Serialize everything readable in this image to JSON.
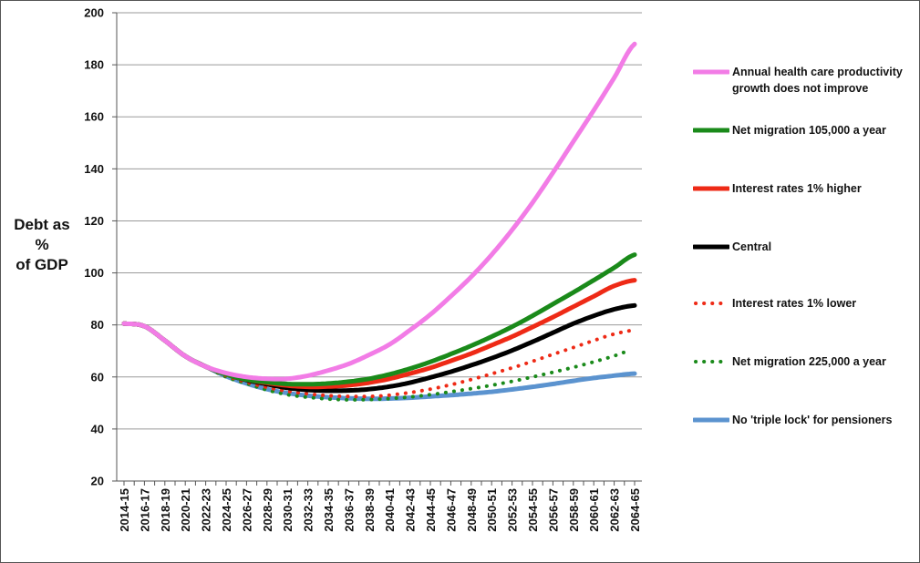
{
  "chart_data": {
    "type": "line",
    "title": "",
    "ylabel": [
      "Debt as",
      "%",
      "of GDP"
    ],
    "xlabel": "",
    "ylim": [
      20,
      200
    ],
    "yticks": [
      20,
      40,
      60,
      80,
      100,
      120,
      140,
      160,
      180,
      200
    ],
    "grid": true,
    "legend_position": "right",
    "x": [
      "2014-15",
      "2015-16",
      "2016-17",
      "2017-18",
      "2018-19",
      "2019-20",
      "2020-21",
      "2021-22",
      "2022-23",
      "2023-24",
      "2024-25",
      "2025-26",
      "2026-27",
      "2027-28",
      "2028-29",
      "2029-30",
      "2030-31",
      "2031-32",
      "2032-33",
      "2033-34",
      "2034-35",
      "2035-36",
      "2036-37",
      "2037-38",
      "2038-39",
      "2039-40",
      "2040-41",
      "2041-42",
      "2042-43",
      "2043-44",
      "2044-45",
      "2045-46",
      "2046-47",
      "2047-48",
      "2048-49",
      "2049-50",
      "2050-51",
      "2051-52",
      "2052-53",
      "2053-54",
      "2054-55",
      "2055-56",
      "2056-57",
      "2057-58",
      "2058-59",
      "2059-60",
      "2060-61",
      "2061-62",
      "2062-63",
      "2063-64",
      "2064-65"
    ],
    "xticks": [
      "2014-15",
      "2016-17",
      "2018-19",
      "2020-21",
      "2022-23",
      "2024-25",
      "2026-27",
      "2028-29",
      "2030-31",
      "2032-33",
      "2034-35",
      "2036-37",
      "2038-39",
      "2040-41",
      "2042-43",
      "2044-45",
      "2046-47",
      "2048-49",
      "2050-51",
      "2052-53",
      "2054-55",
      "2056-57",
      "2058-59",
      "2060-61",
      "2062-63",
      "2064-65"
    ],
    "series": [
      {
        "name": "Annual health care productivity growth does not improve",
        "color": "#f27ce6",
        "dash": false,
        "anchors": [
          [
            0,
            80.5
          ],
          [
            2,
            79.5
          ],
          [
            4,
            74
          ],
          [
            6,
            68
          ],
          [
            8,
            64
          ],
          [
            10,
            61.5
          ],
          [
            12,
            60
          ],
          [
            14,
            59.3
          ],
          [
            16,
            59.3
          ],
          [
            18,
            60.5
          ],
          [
            20,
            62.5
          ],
          [
            22,
            65
          ],
          [
            24,
            68.5
          ],
          [
            26,
            72.5
          ],
          [
            28,
            78
          ],
          [
            30,
            84
          ],
          [
            32,
            91
          ],
          [
            34,
            98.5
          ],
          [
            36,
            107
          ],
          [
            38,
            116.5
          ],
          [
            40,
            127
          ],
          [
            42,
            138.5
          ],
          [
            44,
            150.5
          ],
          [
            46,
            162.5
          ],
          [
            48,
            175
          ],
          [
            50,
            188
          ]
        ]
      },
      {
        "name": "Net migration 105,000 a year",
        "color": "#1a8a1a",
        "dash": false,
        "anchors": [
          [
            0,
            80.5
          ],
          [
            2,
            79.5
          ],
          [
            4,
            74
          ],
          [
            6,
            68
          ],
          [
            8,
            64
          ],
          [
            10,
            61
          ],
          [
            12,
            59
          ],
          [
            14,
            58
          ],
          [
            16,
            57.3
          ],
          [
            18,
            57.2
          ],
          [
            20,
            57.5
          ],
          [
            22,
            58.2
          ],
          [
            24,
            59.3
          ],
          [
            26,
            61
          ],
          [
            28,
            63.2
          ],
          [
            30,
            65.8
          ],
          [
            32,
            68.8
          ],
          [
            34,
            72
          ],
          [
            36,
            75.5
          ],
          [
            38,
            79.3
          ],
          [
            40,
            83.5
          ],
          [
            42,
            88
          ],
          [
            44,
            92.5
          ],
          [
            46,
            97.2
          ],
          [
            48,
            102
          ],
          [
            50,
            107
          ]
        ]
      },
      {
        "name": "Interest rates 1% higher",
        "color": "#ee2a16",
        "dash": false,
        "anchors": [
          [
            0,
            80.5
          ],
          [
            2,
            79.5
          ],
          [
            4,
            74
          ],
          [
            6,
            68
          ],
          [
            8,
            64
          ],
          [
            10,
            61
          ],
          [
            12,
            59
          ],
          [
            14,
            57.7
          ],
          [
            16,
            56.7
          ],
          [
            18,
            56.2
          ],
          [
            20,
            56.3
          ],
          [
            22,
            56.8
          ],
          [
            24,
            57.8
          ],
          [
            26,
            59.3
          ],
          [
            28,
            61.3
          ],
          [
            30,
            63.5
          ],
          [
            32,
            66.2
          ],
          [
            34,
            69
          ],
          [
            36,
            72.2
          ],
          [
            38,
            75.5
          ],
          [
            40,
            79.2
          ],
          [
            42,
            83
          ],
          [
            44,
            87
          ],
          [
            46,
            91
          ],
          [
            48,
            95
          ],
          [
            50,
            97.2
          ]
        ]
      },
      {
        "name": "Central",
        "color": "#000000",
        "dash": false,
        "anchors": [
          [
            0,
            80.5
          ],
          [
            2,
            79.5
          ],
          [
            4,
            74
          ],
          [
            6,
            68
          ],
          [
            8,
            64
          ],
          [
            10,
            61
          ],
          [
            12,
            58.8
          ],
          [
            14,
            57.2
          ],
          [
            16,
            55.8
          ],
          [
            18,
            55
          ],
          [
            20,
            54.7
          ],
          [
            22,
            54.8
          ],
          [
            24,
            55.3
          ],
          [
            26,
            56.3
          ],
          [
            28,
            57.8
          ],
          [
            30,
            59.8
          ],
          [
            32,
            62
          ],
          [
            34,
            64.5
          ],
          [
            36,
            67.2
          ],
          [
            38,
            70.2
          ],
          [
            40,
            73.5
          ],
          [
            42,
            77
          ],
          [
            44,
            80.5
          ],
          [
            46,
            83.5
          ],
          [
            48,
            86
          ],
          [
            50,
            87.5
          ]
        ]
      },
      {
        "name": "Interest rates 1% lower",
        "color": "#ee2a16",
        "dash": true,
        "anchors": [
          [
            0,
            80.5
          ],
          [
            2,
            79.5
          ],
          [
            4,
            74
          ],
          [
            6,
            68
          ],
          [
            8,
            64
          ],
          [
            10,
            60.5
          ],
          [
            12,
            58
          ],
          [
            14,
            56
          ],
          [
            16,
            54.5
          ],
          [
            18,
            53.5
          ],
          [
            20,
            52.8
          ],
          [
            22,
            52.5
          ],
          [
            24,
            52.5
          ],
          [
            26,
            53
          ],
          [
            28,
            54
          ],
          [
            30,
            55.3
          ],
          [
            32,
            57
          ],
          [
            34,
            59
          ],
          [
            36,
            61.2
          ],
          [
            38,
            63.5
          ],
          [
            40,
            66
          ],
          [
            42,
            68.7
          ],
          [
            44,
            71.3
          ],
          [
            46,
            74
          ],
          [
            48,
            76.5
          ],
          [
            50,
            78
          ]
        ]
      },
      {
        "name": "Net migration 225,000 a year",
        "color": "#1a8a1a",
        "dash": true,
        "anchors": [
          [
            0,
            80.5
          ],
          [
            2,
            79.5
          ],
          [
            4,
            74
          ],
          [
            6,
            68
          ],
          [
            8,
            64
          ],
          [
            10,
            60
          ],
          [
            12,
            57.5
          ],
          [
            14,
            55
          ],
          [
            16,
            53.2
          ],
          [
            18,
            52.2
          ],
          [
            20,
            51.5
          ],
          [
            22,
            51.2
          ],
          [
            24,
            51.3
          ],
          [
            26,
            51.7
          ],
          [
            28,
            52.3
          ],
          [
            30,
            53.2
          ],
          [
            32,
            54.3
          ],
          [
            34,
            55.5
          ],
          [
            36,
            56.8
          ],
          [
            38,
            58.3
          ],
          [
            40,
            60
          ],
          [
            42,
            61.8
          ],
          [
            44,
            63.7
          ],
          [
            46,
            65.8
          ],
          [
            48,
            68
          ],
          [
            49,
            69.5
          ]
        ]
      },
      {
        "name": "No  'triple lock' for pensioners",
        "color": "#5b93cf",
        "dash": false,
        "anchors": [
          [
            0,
            80.5
          ],
          [
            2,
            79.5
          ],
          [
            4,
            74
          ],
          [
            6,
            68
          ],
          [
            8,
            64
          ],
          [
            10,
            60.3
          ],
          [
            12,
            57.5
          ],
          [
            14,
            55.3
          ],
          [
            16,
            53.8
          ],
          [
            18,
            52.8
          ],
          [
            20,
            52.2
          ],
          [
            22,
            51.8
          ],
          [
            24,
            51.6
          ],
          [
            26,
            51.7
          ],
          [
            28,
            52
          ],
          [
            30,
            52.5
          ],
          [
            32,
            53
          ],
          [
            34,
            53.6
          ],
          [
            36,
            54.3
          ],
          [
            38,
            55.2
          ],
          [
            40,
            56.2
          ],
          [
            42,
            57.3
          ],
          [
            44,
            58.5
          ],
          [
            46,
            59.6
          ],
          [
            48,
            60.5
          ],
          [
            50,
            61.3
          ]
        ]
      }
    ]
  }
}
